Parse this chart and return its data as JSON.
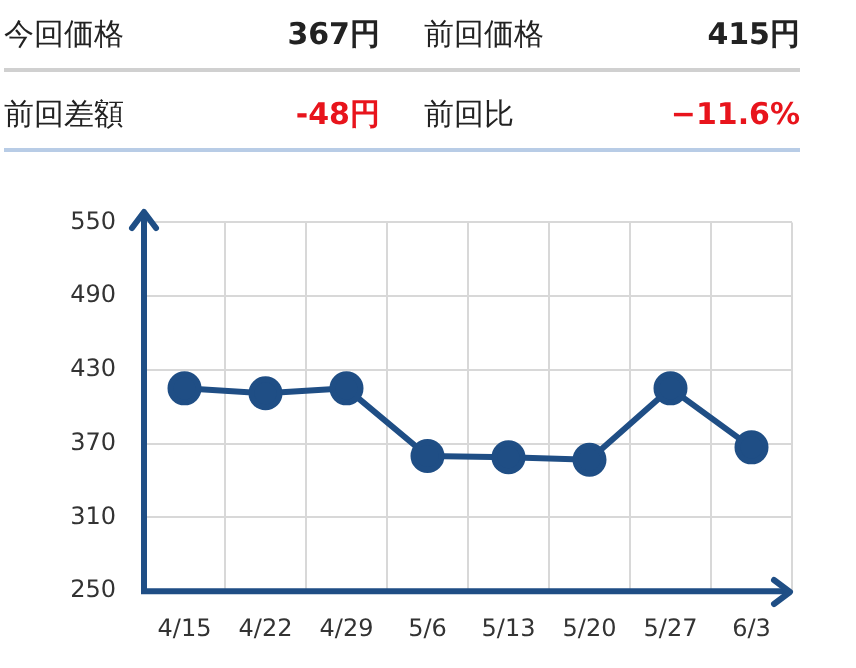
{
  "chart_data": {
    "type": "line",
    "categories": [
      "4/15",
      "4/22",
      "4/29",
      "5/6",
      "5/13",
      "5/20",
      "5/27",
      "6/3"
    ],
    "values": [
      415,
      411,
      415,
      360,
      359,
      357,
      415,
      367
    ],
    "color": "#1f4e85",
    "ylim": [
      250,
      550
    ],
    "yticks": [
      250,
      310,
      370,
      430,
      490,
      550
    ],
    "grid": true,
    "marker": "circle",
    "annotations": [
      "今回価格",
      "367円",
      "前回価格",
      "415円",
      "前回差額",
      "-48円",
      "前回比",
      "−11.6%"
    ]
  }
}
